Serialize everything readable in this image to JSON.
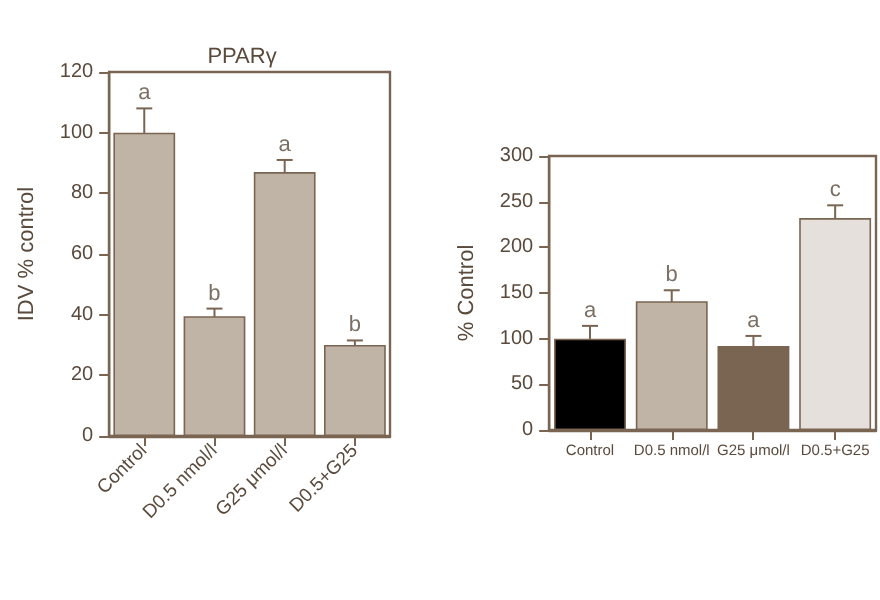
{
  "chart_data": [
    {
      "type": "bar",
      "title": "PPARγ",
      "ylabel": "IDV % control",
      "categories": [
        "Control",
        "D0.5 nmol/l",
        "G25 μmol/l",
        "D0.5+G25"
      ],
      "values": [
        100,
        39.5,
        87,
        30
      ],
      "errors": [
        8,
        2.5,
        4,
        1.5
      ],
      "color": "#c0b4a6",
      "ylim": [
        0,
        120
      ],
      "yticks": [
        0,
        20,
        40,
        60,
        80,
        100,
        120
      ],
      "grid": false,
      "annotations": [
        {
          "text": "a",
          "x": "Control",
          "y": 108
        },
        {
          "text": "b",
          "x": "D0.5 nmol/l",
          "y": 42
        },
        {
          "text": "a",
          "x": "G25 μmol/l",
          "y": 91
        },
        {
          "text": "b",
          "x": "D0.5+G25",
          "y": 31.5
        }
      ]
    },
    {
      "type": "bar",
      "ylabel": "% Control",
      "categories": [
        "Control",
        "D0.5 nmol/l",
        "G25 μmol/l",
        "D0.5+G25"
      ],
      "values": [
        100,
        141,
        92,
        232
      ],
      "errors": [
        14,
        12,
        11,
        14
      ],
      "colors": [
        "#000000",
        "#c0b4a6",
        "#7a6552",
        "#e6e0dc"
      ],
      "ylim": [
        0,
        300
      ],
      "yticks": [
        0,
        50,
        100,
        150,
        200,
        250,
        300
      ],
      "grid": false,
      "annotations": [
        {
          "text": "a",
          "x": "Control",
          "y": 114
        },
        {
          "text": "b",
          "x": "D0.5 nmol/l",
          "y": 153
        },
        {
          "text": "a",
          "x": "G25 μmol/l",
          "y": 103
        },
        {
          "text": "c",
          "x": "D0.5+G25",
          "y": 246
        }
      ]
    }
  ]
}
